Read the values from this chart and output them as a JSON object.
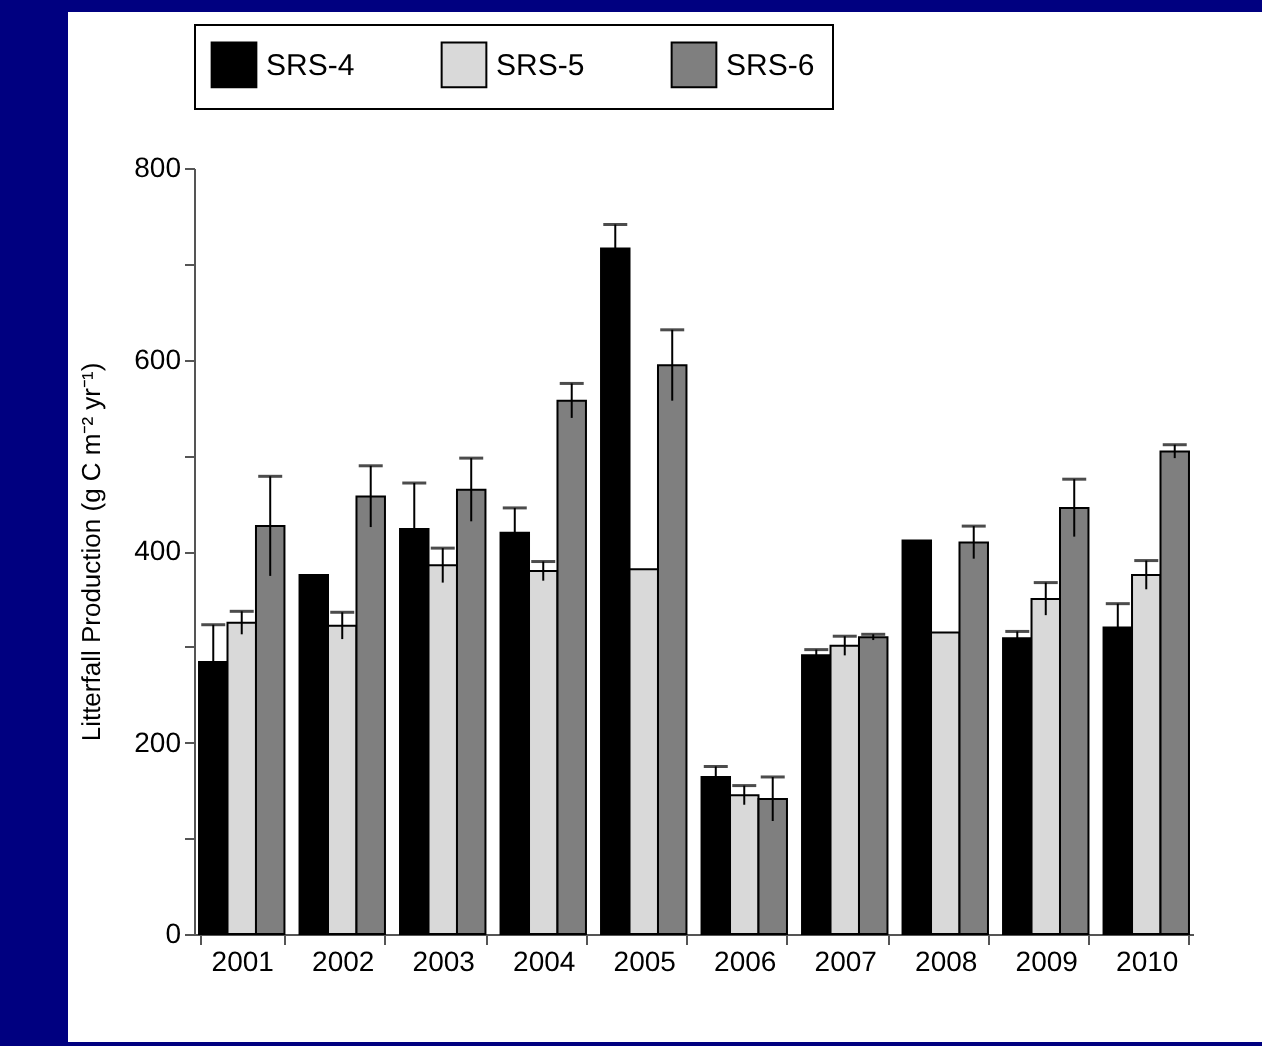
{
  "chart_data": {
    "type": "bar",
    "ylabel": "Litterfall Production (g C m⁻² yr⁻¹)",
    "categories": [
      "2001",
      "2002",
      "2003",
      "2004",
      "2005",
      "2006",
      "2007",
      "2008",
      "2009",
      "2010"
    ],
    "series": [
      {
        "name": "SRS-4",
        "color": "#000000",
        "values": [
          284,
          375,
          423,
          419,
          716,
          164,
          291,
          411,
          309,
          320
        ],
        "errors": [
          39,
          null,
          48,
          26,
          25,
          11,
          6,
          null,
          7,
          25
        ]
      },
      {
        "name": "SRS-5",
        "color": "#d9d9d9",
        "values": [
          325,
          322,
          385,
          379,
          381,
          145,
          301,
          315,
          350,
          375
        ],
        "errors": [
          12,
          14,
          18,
          10,
          null,
          10,
          10,
          null,
          17,
          15
        ]
      },
      {
        "name": "SRS-6",
        "color": "#7f7f7f",
        "values": [
          426,
          457,
          464,
          557,
          594,
          141,
          310,
          409,
          445,
          504
        ],
        "errors": [
          52,
          32,
          33,
          18,
          37,
          23,
          3,
          17,
          30,
          7
        ]
      }
    ],
    "ylim": [
      0,
      800
    ],
    "yticks": [
      0,
      {
        "value": 100,
        "label": null
      },
      200,
      {
        "value": 300,
        "label": null
      },
      400,
      {
        "value": 500,
        "label": null
      },
      600,
      {
        "value": 700,
        "label": null
      },
      800
    ],
    "grid": false,
    "legend": "top"
  }
}
